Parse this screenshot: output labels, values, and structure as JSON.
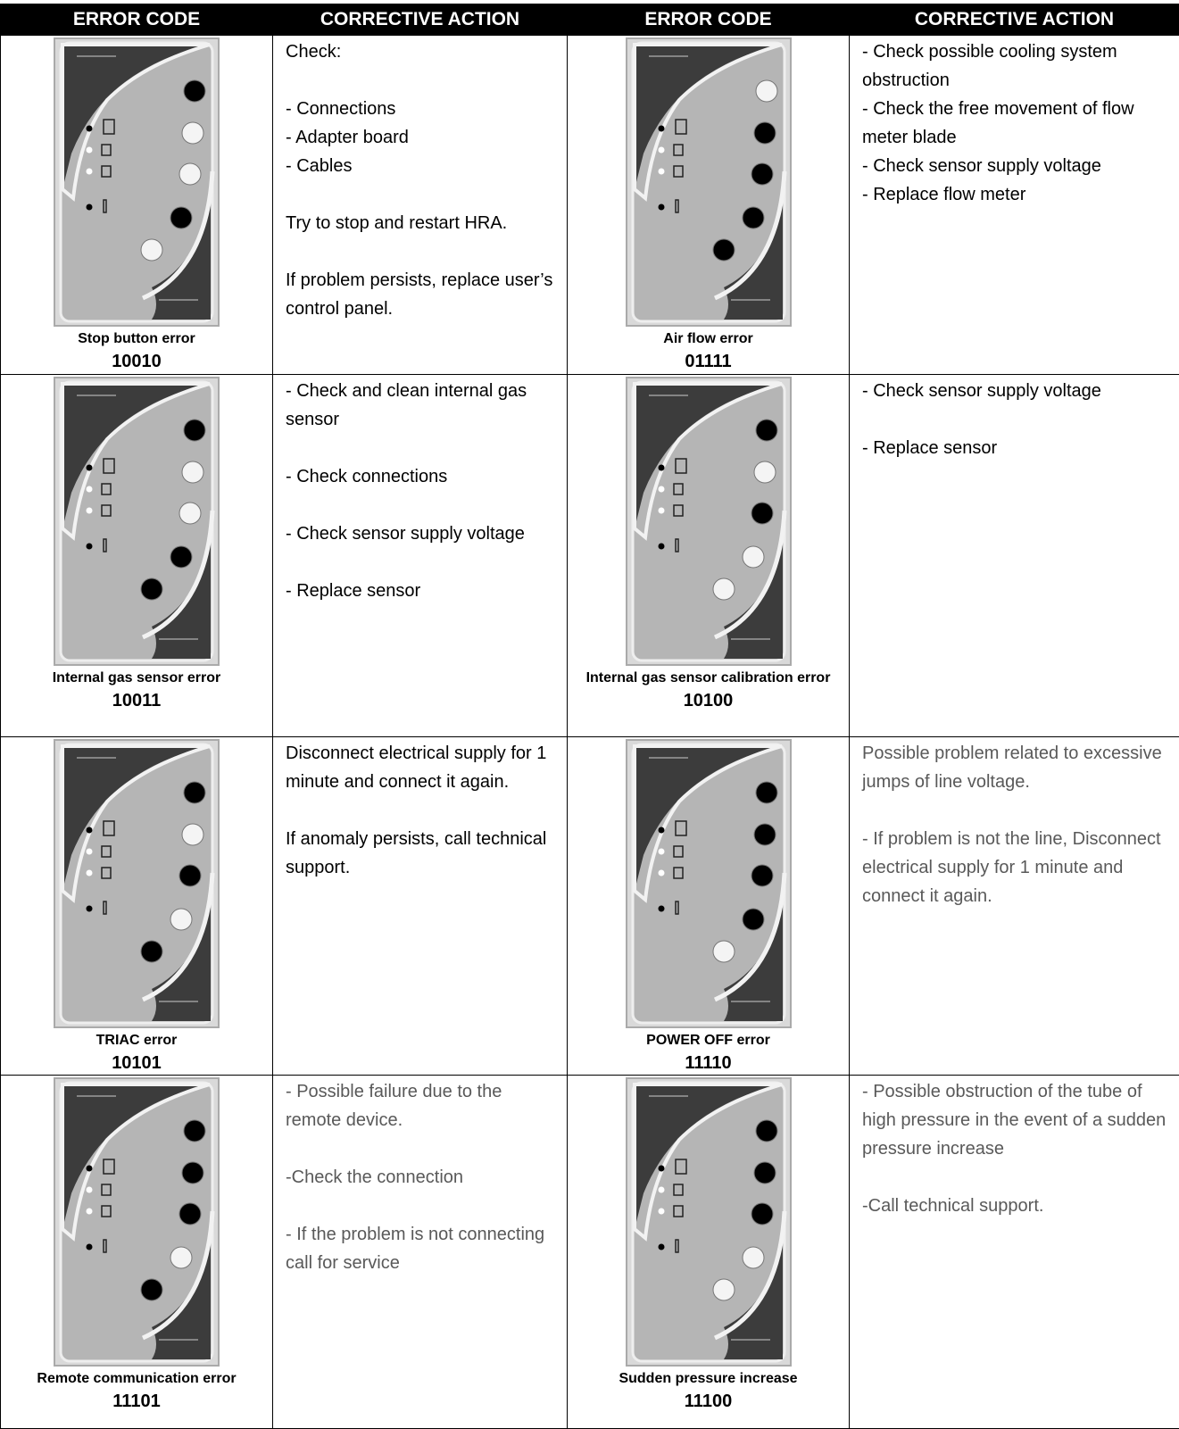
{
  "header": [
    "ERROR CODE",
    "CORRECTIVE ACTION",
    "ERROR CODE",
    "CORRECTIVE ACTION"
  ],
  "rows": [
    [
      {
        "name": "Stop button error",
        "code": "10010",
        "action": [
          [
            "Check:"
          ],
          [
            "-  Connections",
            "- Adapter board",
            "- Cables"
          ],
          [
            "Try to stop and restart HRA."
          ],
          [
            "If problem persists, replace user’s control panel."
          ]
        ]
      },
      {
        "name": "Air flow error",
        "code": "01111",
        "action": [
          [
            "- Check possible cooling system obstruction",
            "- Check the free movement of flow meter blade",
            "- Check sensor supply voltage",
            "- Replace flow meter"
          ]
        ]
      }
    ],
    [
      {
        "name": "Internal gas sensor error",
        "code": "10011",
        "action": [
          [
            "- Check and clean internal gas sensor"
          ],
          [
            "- Check connections"
          ],
          [
            "-  Check sensor supply voltage"
          ],
          [
            "-  Replace sensor"
          ]
        ]
      },
      {
        "name": "Internal gas sensor calibration error",
        "code": "10100",
        "action": [
          [
            "- Check sensor supply voltage"
          ],
          [
            "-  Replace sensor"
          ]
        ]
      }
    ],
    [
      {
        "name": "TRIAC error",
        "code": "10101",
        "action": [
          [
            "Disconnect electrical supply for 1 minute and connect it again."
          ],
          [
            "If anomaly persists, call technical support."
          ]
        ]
      },
      {
        "name": "POWER OFF error",
        "code": "11110",
        "text_color": "#595959",
        "action": [
          [
            "Possible problem related to excessive jumps of line voltage."
          ],
          [
            "- If problem is not the line, Disconnect electrical supply for 1 minute and connect it again."
          ]
        ]
      }
    ],
    [
      {
        "name": "Remote communication error",
        "code": "11101",
        "text_color": "#595959",
        "action": [
          [
            "- Possible failure due to the remote  device."
          ],
          [
            "-Check the connection"
          ],
          [
            "- If the problem is not connecting call for service"
          ]
        ]
      },
      {
        "name": "Sudden pressure increase",
        "code": "11100",
        "text_color": "#595959",
        "action": [
          [
            "- Possible obstruction of the tube of high pressure in the event of a sudden pressure increase"
          ],
          [
            "-Call technical support."
          ]
        ]
      }
    ]
  ]
}
